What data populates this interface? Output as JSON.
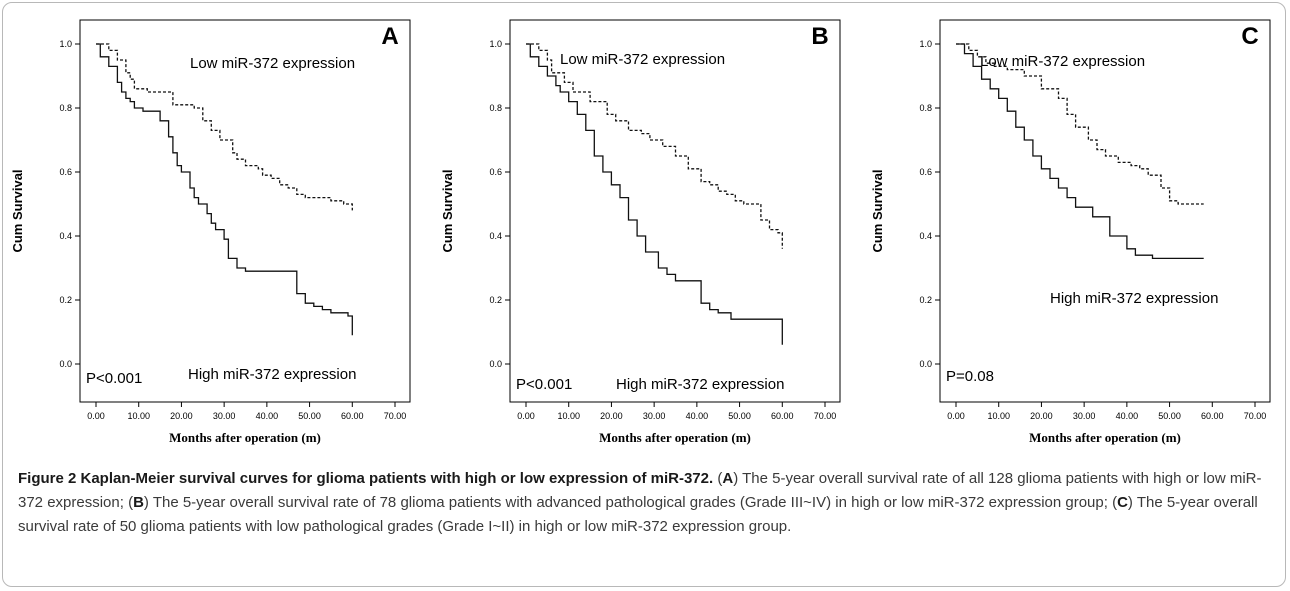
{
  "chart_data": [
    {
      "panel": "A",
      "type": "line",
      "step": true,
      "xlabel": "Months after operation (m)",
      "ylabel": "Cum Survival",
      "xlim": [
        0,
        70
      ],
      "ylim": [
        0,
        1
      ],
      "xticks": [
        "0.00",
        "10.00",
        "20.00",
        "30.00",
        "40.00",
        "50.00",
        "60.00",
        "70.00"
      ],
      "yticks": [
        "0.0",
        "0.2",
        "0.4",
        "0.6",
        "0.8",
        "1.0"
      ],
      "pvalue": "P<0.001",
      "series": [
        {
          "name": "Low miR-372 expression",
          "dash": true,
          "x": [
            0,
            3,
            5,
            7,
            8,
            9,
            12,
            18,
            23,
            25,
            27,
            29,
            32,
            33,
            35,
            38,
            39,
            41,
            43,
            45,
            47,
            49,
            51,
            55,
            58,
            60
          ],
          "y": [
            1.0,
            0.98,
            0.95,
            0.91,
            0.89,
            0.86,
            0.85,
            0.81,
            0.8,
            0.76,
            0.73,
            0.7,
            0.66,
            0.64,
            0.62,
            0.61,
            0.59,
            0.58,
            0.56,
            0.55,
            0.53,
            0.52,
            0.52,
            0.51,
            0.5,
            0.48
          ]
        },
        {
          "name": "High miR-372 expression",
          "dash": false,
          "x": [
            0,
            1,
            3,
            5,
            6,
            7,
            8,
            9,
            11,
            15,
            17,
            18,
            19,
            20,
            22,
            23,
            24,
            26,
            27,
            28,
            30,
            31,
            33,
            35,
            47,
            49,
            51,
            53,
            55,
            59,
            60
          ],
          "y": [
            1.0,
            0.96,
            0.93,
            0.88,
            0.85,
            0.83,
            0.82,
            0.8,
            0.79,
            0.76,
            0.71,
            0.66,
            0.62,
            0.6,
            0.55,
            0.52,
            0.5,
            0.47,
            0.44,
            0.42,
            0.39,
            0.33,
            0.3,
            0.29,
            0.22,
            0.19,
            0.18,
            0.17,
            0.16,
            0.15,
            0.09
          ]
        }
      ]
    },
    {
      "panel": "B",
      "type": "line",
      "step": true,
      "xlabel": "Months after operation (m)",
      "ylabel": "Cum Survival",
      "xlim": [
        0,
        70
      ],
      "ylim": [
        0,
        1
      ],
      "xticks": [
        "0.00",
        "10.00",
        "20.00",
        "30.00",
        "40.00",
        "50.00",
        "60.00",
        "70.00"
      ],
      "yticks": [
        "0.0",
        "0.2",
        "0.4",
        "0.6",
        "0.8",
        "1.0"
      ],
      "pvalue": "P<0.001",
      "series": [
        {
          "name": "Low miR-372 expression",
          "dash": true,
          "x": [
            0,
            3,
            5,
            6,
            9,
            11,
            15,
            19,
            21,
            24,
            27,
            29,
            32,
            35,
            38,
            41,
            43,
            45,
            47,
            49,
            51,
            55,
            57,
            59,
            60
          ],
          "y": [
            1.0,
            0.98,
            0.95,
            0.91,
            0.88,
            0.85,
            0.82,
            0.78,
            0.76,
            0.73,
            0.72,
            0.7,
            0.68,
            0.65,
            0.61,
            0.57,
            0.56,
            0.54,
            0.53,
            0.51,
            0.5,
            0.45,
            0.42,
            0.41,
            0.36
          ]
        },
        {
          "name": "High miR-372 expression",
          "dash": false,
          "x": [
            0,
            1,
            3,
            5,
            7,
            8,
            10,
            12,
            14,
            16,
            18,
            20,
            22,
            24,
            26,
            28,
            31,
            33,
            35,
            41,
            43,
            45,
            48,
            60
          ],
          "y": [
            1.0,
            0.96,
            0.93,
            0.9,
            0.87,
            0.85,
            0.82,
            0.78,
            0.73,
            0.65,
            0.6,
            0.56,
            0.52,
            0.45,
            0.4,
            0.35,
            0.3,
            0.28,
            0.26,
            0.19,
            0.17,
            0.16,
            0.14,
            0.06
          ]
        }
      ]
    },
    {
      "panel": "C",
      "type": "line",
      "step": true,
      "xlabel": "Months after operation (m)",
      "ylabel": "Cum Survival",
      "xlim": [
        0,
        70
      ],
      "ylim": [
        0,
        1
      ],
      "xticks": [
        "0.00",
        "10.00",
        "20.00",
        "30.00",
        "40.00",
        "50.00",
        "60.00",
        "70.00"
      ],
      "yticks": [
        "0.0",
        "0.2",
        "0.4",
        "0.6",
        "0.8",
        "1.0"
      ],
      "pvalue": "P=0.08",
      "series": [
        {
          "name": "Low miR-372 expression",
          "dash": true,
          "x": [
            0,
            3,
            5,
            7,
            9,
            12,
            16,
            20,
            24,
            26,
            28,
            31,
            33,
            35,
            38,
            41,
            43,
            45,
            48,
            50,
            52,
            58
          ],
          "y": [
            1.0,
            0.98,
            0.96,
            0.94,
            0.93,
            0.92,
            0.9,
            0.86,
            0.83,
            0.78,
            0.74,
            0.7,
            0.67,
            0.65,
            0.63,
            0.62,
            0.61,
            0.59,
            0.55,
            0.51,
            0.5,
            0.5
          ]
        },
        {
          "name": "High miR-372 expression",
          "dash": false,
          "x": [
            0,
            2,
            4,
            6,
            8,
            10,
            12,
            14,
            16,
            18,
            20,
            22,
            24,
            26,
            28,
            32,
            36,
            40,
            42,
            46,
            58
          ],
          "y": [
            1.0,
            0.97,
            0.93,
            0.89,
            0.86,
            0.83,
            0.79,
            0.74,
            0.7,
            0.65,
            0.61,
            0.58,
            0.55,
            0.52,
            0.49,
            0.46,
            0.4,
            0.36,
            0.34,
            0.33,
            0.33
          ]
        }
      ]
    }
  ],
  "panel_letters": [
    "A",
    "B",
    "C"
  ],
  "caption": {
    "heading": "Figure 2 Kaplan-Meier survival curves for glioma patients with high or low expression of miR-372.",
    "parts": [
      {
        "letter": "A",
        "text": "The 5-year overall survival rate of all 128 glioma patients with high or low miR-372 expression; "
      },
      {
        "letter": "B",
        "text": "The 5-year overall survival rate of 78 glioma patients with advanced pathological grades (Grade III~IV) in high or low miR-372 expression group; "
      },
      {
        "letter": "C",
        "text": "The 5-year overall survival rate of 50 glioma patients with low pathological grades (Grade I~II) in high or low miR-372 expression group."
      }
    ]
  }
}
